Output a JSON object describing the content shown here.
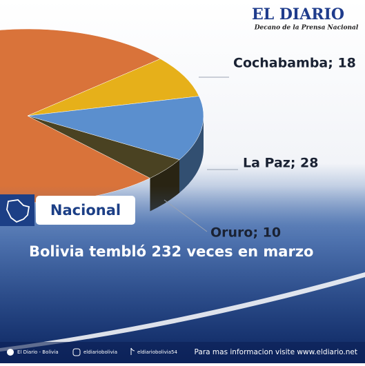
{
  "chart_data": {
    "type": "pie",
    "categories": [
      null,
      "Cochabamba",
      "La Paz",
      "Oruro"
    ],
    "values": [
      176,
      18,
      28,
      10
    ],
    "value_labels": [
      null,
      "Cochabamba; 18",
      "La Paz; 28",
      "Oruro; 10"
    ],
    "colors": [
      "#d9733a",
      "#e6b01a",
      "#5b8fce",
      "#4a4222"
    ]
  },
  "logo": {
    "title": "EL DIARIO",
    "subtitle": "Decano de la Prensa Nacional"
  },
  "section": "Nacional",
  "headline": "Bolivia tembló 232 veces en marzo",
  "footer": {
    "facebook": "El Diario - Bolivia",
    "instagram": "eldiariobolivia",
    "tiktok": "eldiariobolivia54",
    "web": "Para mas informacion visite www.eldiario.net"
  }
}
